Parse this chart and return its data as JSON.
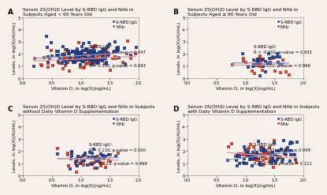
{
  "panels": [
    {
      "label": "A",
      "title": "Serum 25(OH)D Level by S-RBD IgG and NAb in\nSubjects Aged < 60 Years Old",
      "igg_annotation": "S-RBD IgGᵃ\nR = 0.136, p-value = 0.047",
      "nab_annotation": "NAbᵇ\nR = 0.115, p-value = 0.093",
      "xlim": [
        0.0,
        2.0
      ],
      "ylim": [
        0,
        5
      ],
      "igg_slope": 0.3,
      "igg_intercept": 1.55,
      "nab_slope": 0.22,
      "nab_intercept": 1.35,
      "x_center": 1.1,
      "x_spread": 0.35,
      "np_igg": 130,
      "np_nab": 95
    },
    {
      "label": "B",
      "title": "Serum 25(OH)D Level by S-RBD IgG and NAb in\nSubjects Aged ≥ 60 Years Old",
      "igg_annotation": "S-RBD IgGᵃ\nR = -0.002, p-value = 0.933",
      "nab_annotation": "NAbᵇ\nR = 0.010, p-value = 0.966",
      "xlim": [
        0.0,
        2.0
      ],
      "ylim": [
        0,
        5
      ],
      "igg_slope": -0.01,
      "igg_intercept": 1.25,
      "nab_slope": 0.01,
      "nab_intercept": 1.05,
      "x_center": 1.3,
      "x_spread": 0.2,
      "np_igg": 30,
      "np_nab": 25
    },
    {
      "label": "C",
      "title": "Serum 25(OH)D Level by S-RBD IgG and NAb in Subjects\nwithout Daily Vitamin D Supplementation",
      "igg_annotation": "S-RBD IgGᵃ\nR = 0.116, p-value = 0.500",
      "nab_annotation": "NAbᵇ\nR = -0.123, p-value = 0.469",
      "xlim": [
        0.0,
        2.0
      ],
      "ylim": [
        0,
        5
      ],
      "igg_slope": 0.1,
      "igg_intercept": 1.3,
      "nab_slope": -0.12,
      "nab_intercept": 1.45,
      "x_center": 1.2,
      "x_spread": 0.25,
      "np_igg": 35,
      "np_nab": 30
    },
    {
      "label": "D",
      "title": "Serum 25(OH)D Level by S-RBD IgG and NAb in Subjects\nwith Daily Vitamin D Supplementation",
      "igg_annotation": "S-RBD IgGᵃ\nR = 0.182, p-value = 0.099",
      "nab_annotation": "NAbᵇ\nR = -0.171, p-value = 0.121",
      "xlim": [
        0.0,
        2.0
      ],
      "ylim": [
        0,
        5
      ],
      "igg_slope": 0.6,
      "igg_intercept": 0.85,
      "nab_slope": -0.4,
      "nab_intercept": 2.15,
      "x_center": 1.35,
      "x_spread": 0.3,
      "np_igg": 70,
      "np_nab": 60
    }
  ],
  "igg_color": "#1F3A7D",
  "nab_color": "#C0392B",
  "igg_line_color": "#8899CC",
  "nab_line_color": "#D4A0A0",
  "xlabel": "Vitamin D, in log(X)(ng/mL)",
  "ylabel": "Levels, in log(X)(AU/mL)",
  "marker": "s",
  "markersize": 2.8,
  "annotation_fontsize": 3.8,
  "title_fontsize": 4.2,
  "tick_fontsize": 3.8,
  "label_fontsize": 4.0,
  "legend_fontsize": 3.8,
  "bg_color": "#F5F0EB"
}
